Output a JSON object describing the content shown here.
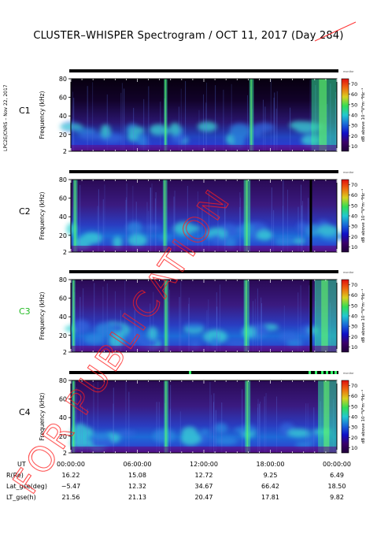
{
  "title": "CLUSTER–WHISPER Spectrogram / OCT 11, 2017 (Day 284)",
  "side_credit": "LPC2E/CNRS – Nov 22, 2017",
  "watermark": "FOR PUBLICATION",
  "ylabel": "Frequency (kHz)",
  "yticks": [
    "2",
    "20",
    "40",
    "60",
    "80"
  ],
  "colorbar": {
    "label": "dB above 10⁻⁸V²m⁻²Hz⁻¹",
    "ticks": [
      "10",
      "20",
      "30",
      "40",
      "50",
      "60",
      "70"
    ],
    "top_label": "monitor",
    "colors": [
      "#20003a",
      "#3a006a",
      "#1010c8",
      "#1a6ad8",
      "#22c8d0",
      "#33dd55",
      "#d8d020",
      "#ee6a10",
      "#e01010"
    ]
  },
  "panels": [
    {
      "label": "C1",
      "label_color": "#000000",
      "status_label": "monitor"
    },
    {
      "label": "C2",
      "label_color": "#000000",
      "status_label": "monitor"
    },
    {
      "label": "C3",
      "label_color": "#22bb22",
      "status_label": "monitor"
    },
    {
      "label": "C4",
      "label_color": "#000000",
      "status_label": "monitor"
    }
  ],
  "footer": {
    "rows": [
      {
        "label": "UT",
        "values": [
          "00:00:00",
          "06:00:00",
          "12:00:00",
          "18:00:00",
          "00:00:00"
        ]
      },
      {
        "label": "R(Re)",
        "values": [
          "16.22",
          "15.08",
          "12.72",
          "9.25",
          "6.49"
        ]
      },
      {
        "label": "Lat_gse(deg)",
        "values": [
          "−5.47",
          "12.32",
          "34.67",
          "66.42",
          "18.50"
        ]
      },
      {
        "label": "LT_gse(h)",
        "values": [
          "21.56",
          "21.13",
          "20.47",
          "17.81",
          "9.82"
        ]
      }
    ]
  },
  "chart_data": {
    "type": "heatmap",
    "title": "CLUSTER–WHISPER Spectrogram / OCT 11, 2017 (Day 284)",
    "xlabel": "UT",
    "ylabel": "Frequency (kHz)",
    "ylim": [
      2,
      80
    ],
    "zlim": [
      10,
      70
    ],
    "zlabel": "dB above 10⁻⁸V²m⁻²Hz⁻¹",
    "x_ticks": [
      "00:00:00",
      "06:00:00",
      "12:00:00",
      "18:00:00",
      "00:00:00"
    ],
    "y_ticks": [
      2,
      20,
      40,
      60,
      80
    ],
    "series": [
      {
        "name": "C1",
        "bright_intervals_ut_h": [
          [
            8.4,
            8.7
          ],
          [
            16.1,
            16.5
          ],
          [
            21.7,
            24.0
          ]
        ],
        "diffuse_band_khz": [
          10,
          30
        ]
      },
      {
        "name": "C2",
        "bright_intervals_ut_h": [
          [
            0.2,
            0.6
          ],
          [
            8.3,
            8.7
          ],
          [
            15.6,
            16.2
          ]
        ],
        "diffuse_band_khz": [
          10,
          30
        ]
      },
      {
        "name": "C3",
        "bright_intervals_ut_h": [
          [
            0.1,
            0.4
          ],
          [
            8.4,
            8.8
          ],
          [
            15.6,
            16.1
          ],
          [
            22.0,
            24.0
          ]
        ],
        "diffuse_band_khz": [
          10,
          30
        ]
      },
      {
        "name": "C4",
        "bright_intervals_ut_h": [
          [
            0.1,
            0.4
          ],
          [
            8.4,
            8.8
          ],
          [
            15.7,
            16.2
          ],
          [
            22.3,
            24.0
          ]
        ],
        "diffuse_band_khz": [
          10,
          30
        ]
      }
    ]
  }
}
